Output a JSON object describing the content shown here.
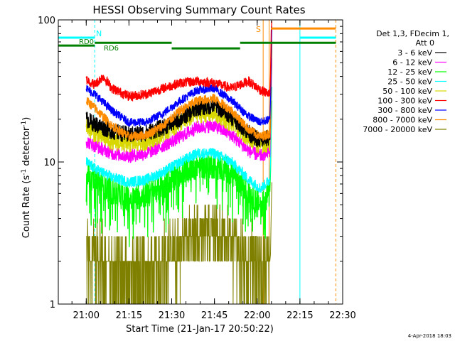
{
  "chart_data": {
    "type": "line",
    "title": "HESSI Observing Summary Count Rates",
    "xlabel": "Start Time (21-Jan-17 20:50:22)",
    "ylabel": "Count Rate (s⁻¹ detector⁻¹)",
    "ylabel_main": "Count Rate (s",
    "ylabel_sup1": "-1",
    "ylabel_mid": " detector",
    "ylabel_sup2": "-1",
    "ylabel_end": ")",
    "y_scale": "log",
    "ylim": [
      1,
      100
    ],
    "xlim_minutes": [
      20.8367,
      22.5
    ],
    "x_tick_labels": [
      "21:00",
      "21:15",
      "21:30",
      "21:45",
      "22:00",
      "22:15",
      "22:30"
    ],
    "x_tick_minutes": [
      21.0,
      21.25,
      21.5,
      21.75,
      22.0,
      22.25,
      22.5
    ],
    "y_tick_labels": [
      "1",
      "10",
      "100"
    ],
    "y_tick_values": [
      1,
      10,
      100
    ],
    "legend": {
      "header": [
        "Det 1,3, FDecim 1,",
        "Att 0"
      ],
      "position": "right"
    },
    "annotations": {
      "rd0": "RD0",
      "rd6": "RD6",
      "n": "N",
      "s": "S"
    },
    "timestamp": "4-Apr-2018 18:03",
    "series": [
      {
        "name": "3 - 6 keV",
        "color": "#000000",
        "profile": [
          [
            21.0,
            20
          ],
          [
            21.05,
            18.5
          ],
          [
            21.15,
            16.5
          ],
          [
            21.25,
            15.5
          ],
          [
            21.35,
            16
          ],
          [
            21.45,
            17.5
          ],
          [
            21.55,
            20
          ],
          [
            21.65,
            24
          ],
          [
            21.75,
            25
          ],
          [
            21.85,
            21
          ],
          [
            21.95,
            16
          ],
          [
            22.02,
            14
          ],
          [
            22.075,
            15
          ]
        ]
      },
      {
        "name": "6 - 12 keV",
        "color": "#ff00ff",
        "profile": [
          [
            21.0,
            14
          ],
          [
            21.05,
            13
          ],
          [
            21.15,
            11.5
          ],
          [
            21.25,
            11
          ],
          [
            21.35,
            11.5
          ],
          [
            21.45,
            13
          ],
          [
            21.55,
            15
          ],
          [
            21.65,
            17.5
          ],
          [
            21.75,
            18
          ],
          [
            21.85,
            15.5
          ],
          [
            21.95,
            12
          ],
          [
            22.02,
            11
          ],
          [
            22.075,
            12
          ]
        ]
      },
      {
        "name": "12 - 25 keV",
        "color": "#00ff00",
        "profile": [
          [
            21.0,
            8.5
          ],
          [
            21.05,
            7.5
          ],
          [
            21.15,
            6.2
          ],
          [
            21.25,
            5.5
          ],
          [
            21.35,
            6
          ],
          [
            21.45,
            6.8
          ],
          [
            21.55,
            8.5
          ],
          [
            21.65,
            9.5
          ],
          [
            21.75,
            9.5
          ],
          [
            21.85,
            8.5
          ],
          [
            21.95,
            6
          ],
          [
            22.02,
            5
          ],
          [
            22.075,
            6
          ]
        ]
      },
      {
        "name": "25 - 50 keV",
        "color": "#00ffff",
        "profile": [
          [
            21.0,
            10
          ],
          [
            21.05,
            9
          ],
          [
            21.15,
            7.8
          ],
          [
            21.25,
            7.2
          ],
          [
            21.35,
            7.5
          ],
          [
            21.45,
            8.5
          ],
          [
            21.55,
            10
          ],
          [
            21.65,
            11.5
          ],
          [
            21.75,
            11.5
          ],
          [
            21.85,
            10
          ],
          [
            21.95,
            7.5
          ],
          [
            22.02,
            6.5
          ],
          [
            22.075,
            7.5
          ]
        ]
      },
      {
        "name": "50 - 100 keV",
        "color": "#d8d800",
        "profile": [
          [
            21.0,
            18
          ],
          [
            21.05,
            16
          ],
          [
            21.15,
            14
          ],
          [
            21.25,
            13.5
          ],
          [
            21.35,
            14
          ],
          [
            21.45,
            16
          ],
          [
            21.55,
            19
          ],
          [
            21.65,
            22
          ],
          [
            21.75,
            22
          ],
          [
            21.85,
            19
          ],
          [
            21.95,
            15
          ],
          [
            22.02,
            13
          ],
          [
            22.075,
            14
          ]
        ]
      },
      {
        "name": "100 - 300 keV",
        "color": "#ff0000",
        "profile": [
          [
            21.0,
            38
          ],
          [
            21.05,
            35
          ],
          [
            21.1,
            40
          ],
          [
            21.15,
            33
          ],
          [
            21.25,
            29
          ],
          [
            21.35,
            30
          ],
          [
            21.45,
            33
          ],
          [
            21.55,
            36
          ],
          [
            21.65,
            37
          ],
          [
            21.75,
            36
          ],
          [
            21.85,
            33
          ],
          [
            21.95,
            37
          ],
          [
            22.02,
            32
          ],
          [
            22.075,
            30
          ]
        ]
      },
      {
        "name": "300 - 800 keV",
        "color": "#0000ff",
        "profile": [
          [
            21.0,
            33
          ],
          [
            21.05,
            30
          ],
          [
            21.15,
            23
          ],
          [
            21.25,
            19
          ],
          [
            21.35,
            19
          ],
          [
            21.45,
            22
          ],
          [
            21.55,
            27
          ],
          [
            21.65,
            32
          ],
          [
            21.75,
            33
          ],
          [
            21.85,
            27
          ],
          [
            21.95,
            21
          ],
          [
            22.02,
            19
          ],
          [
            22.075,
            20
          ]
        ]
      },
      {
        "name": "800 - 7000 keV",
        "color": "#ff8c00",
        "profile": [
          [
            21.0,
            27
          ],
          [
            21.05,
            24
          ],
          [
            21.15,
            18
          ],
          [
            21.25,
            15
          ],
          [
            21.35,
            15.5
          ],
          [
            21.45,
            18
          ],
          [
            21.55,
            23
          ],
          [
            21.65,
            27
          ],
          [
            21.75,
            28
          ],
          [
            21.85,
            23
          ],
          [
            21.95,
            17
          ],
          [
            22.02,
            15
          ],
          [
            22.075,
            16
          ]
        ]
      },
      {
        "name": "7000 - 20000 keV",
        "color": "#808000",
        "profile": [
          [
            21.0,
            2.2
          ],
          [
            21.05,
            1.9
          ],
          [
            21.15,
            1.5
          ],
          [
            21.25,
            1.4
          ],
          [
            21.35,
            1.5
          ],
          [
            21.45,
            1.7
          ],
          [
            21.55,
            2.2
          ],
          [
            21.65,
            2.8
          ],
          [
            21.75,
            3
          ],
          [
            21.85,
            2.4
          ],
          [
            21.95,
            1.8
          ],
          [
            22.02,
            1.5
          ],
          [
            22.075,
            1.6
          ]
        ]
      }
    ],
    "indicator_bars": [
      {
        "label": "RD0",
        "color": "#00ffff",
        "y": 75,
        "segments": [
          [
            20.8367,
            21.05
          ],
          [
            22.25,
            22.46
          ]
        ]
      },
      {
        "label": "RD6",
        "color": "#008000",
        "y": 66,
        "segments": [
          [
            20.8367,
            21.05
          ]
        ]
      },
      {
        "color": "#008000",
        "y": 69,
        "segments": [
          [
            21.05,
            21.5
          ],
          [
            21.9,
            22.46
          ]
        ]
      },
      {
        "color": "#008000",
        "y": 63,
        "segments": [
          [
            21.5,
            21.9
          ]
        ]
      },
      {
        "label": "S",
        "color": "#ff8c00",
        "y": 87,
        "segments": [
          [
            22.08,
            22.46
          ]
        ]
      }
    ],
    "vertical_markers": [
      {
        "x": 21.05,
        "color": "#00ffff",
        "style": "dashed"
      },
      {
        "x": 22.25,
        "color": "#00ffff",
        "style": "solid"
      },
      {
        "x": 22.46,
        "color": "#ff8c00",
        "style": "dashed"
      },
      {
        "x": 22.035,
        "color": "#ff8c00",
        "style": "solid"
      },
      {
        "x": 22.07,
        "color": "#ff8c00",
        "style": "solid"
      }
    ]
  }
}
